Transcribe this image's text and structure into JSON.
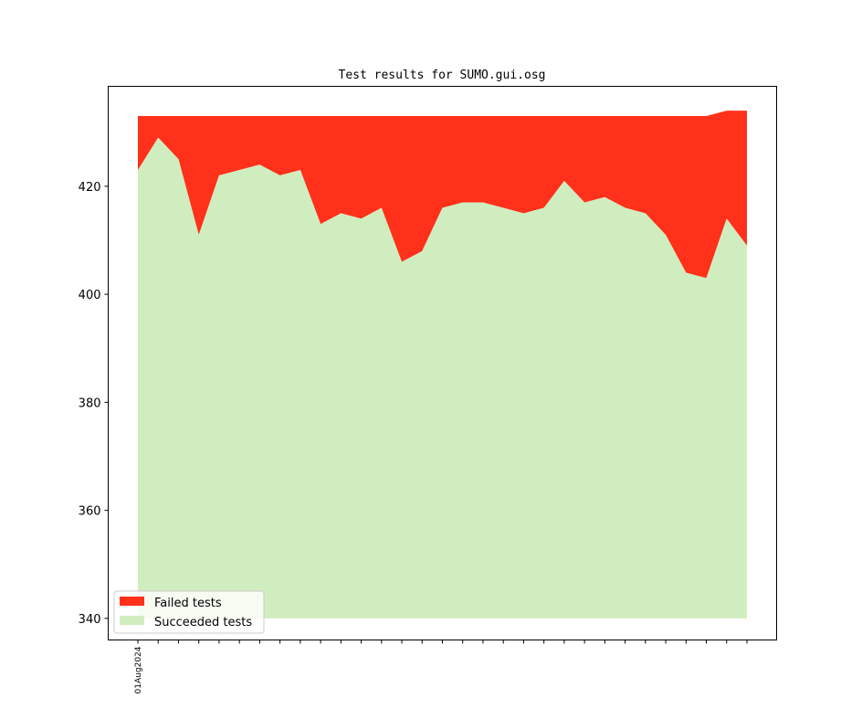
{
  "chart_data": {
    "type": "area",
    "title": "Test results for SUMO.gui.osg",
    "xlabel": "",
    "ylabel": "",
    "ylim": [
      336,
      438.5
    ],
    "yticks": [
      340,
      360,
      380,
      400,
      420
    ],
    "x_tick_count": 31,
    "x_tick_labels": [
      "01Aug2024"
    ],
    "baseline": 340,
    "series": [
      {
        "name": "Succeeded tests",
        "color": "#d0edbf",
        "values": [
          423,
          429,
          425,
          411,
          422,
          423,
          424,
          422,
          423,
          413,
          415,
          414,
          416,
          406,
          408,
          416,
          417,
          417,
          416,
          415,
          416,
          421,
          417,
          418,
          416,
          415,
          411,
          404,
          403,
          414,
          409
        ]
      },
      {
        "name": "Failed tests",
        "color": "#ff311b",
        "totals": [
          433,
          433,
          433,
          433,
          433,
          433,
          433,
          433,
          433,
          433,
          433,
          433,
          433,
          433,
          433,
          433,
          433,
          433,
          433,
          433,
          433,
          433,
          433,
          433,
          433,
          433,
          433,
          433,
          433,
          434,
          434
        ]
      }
    ],
    "legend": {
      "position": "lower-left",
      "entries": [
        {
          "label": "Failed tests",
          "color": "#ff311b"
        },
        {
          "label": "Succeeded tests",
          "color": "#d0edbf"
        }
      ]
    }
  }
}
